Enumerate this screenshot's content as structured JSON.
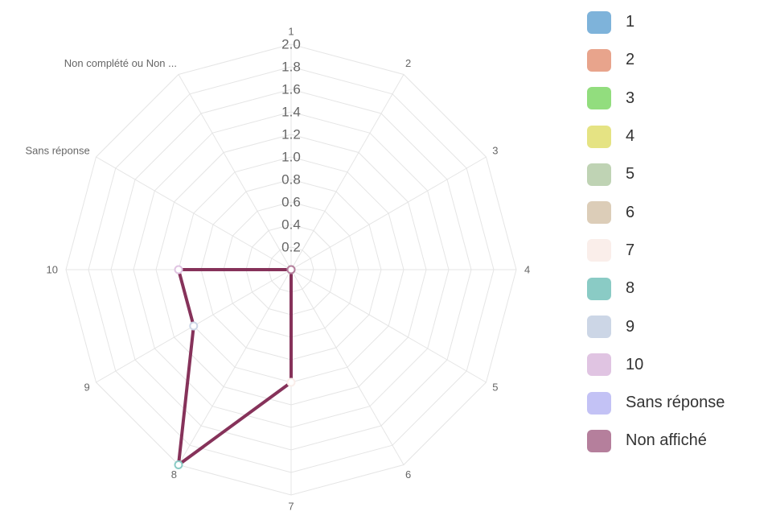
{
  "chart_data": {
    "type": "radar",
    "axes": [
      "1",
      "2",
      "3",
      "4",
      "5",
      "6",
      "7",
      "8",
      "9",
      "10",
      "Sans réponse",
      "Non complété ou Non ..."
    ],
    "rlim": [
      0,
      2
    ],
    "tick_labels": [
      "0.2",
      "0.4",
      "0.6",
      "0.8",
      "1.0",
      "1.2",
      "1.4",
      "1.6",
      "1.8",
      "2.0"
    ],
    "ticks": [
      0.2,
      0.4,
      0.6,
      0.8,
      1.0,
      1.2,
      1.4,
      1.6,
      1.8,
      2.0
    ],
    "grid": true,
    "series": [
      {
        "values": [
          0,
          0,
          0,
          0,
          0,
          0,
          1,
          2,
          1,
          1,
          0,
          0
        ],
        "color": "#86325a",
        "point_colors": [
          "#7eb3da",
          "#e8a48c",
          "#92dd7e",
          "#e5e383",
          "#bfd3b4",
          "#dccdb8",
          "#faeeea",
          "#8acbc5",
          "#ccd6e6",
          "#e0c4e2",
          "#c3c2f5",
          "#b57f9c"
        ]
      }
    ],
    "legend": {
      "position": "right",
      "items": [
        {
          "label": "1",
          "color": "#7eb3da"
        },
        {
          "label": "2",
          "color": "#e8a48c"
        },
        {
          "label": "3",
          "color": "#92dd7e"
        },
        {
          "label": "4",
          "color": "#e5e383"
        },
        {
          "label": "5",
          "color": "#bfd3b4"
        },
        {
          "label": "6",
          "color": "#dccdb8"
        },
        {
          "label": "7",
          "color": "#faeeea"
        },
        {
          "label": "8",
          "color": "#8acbc5"
        },
        {
          "label": "9",
          "color": "#ccd6e6"
        },
        {
          "label": "10",
          "color": "#e0c4e2"
        },
        {
          "label": "Sans réponse",
          "color": "#c3c2f5"
        },
        {
          "label": "Non affiché",
          "color": "#b57f9c"
        }
      ]
    }
  }
}
